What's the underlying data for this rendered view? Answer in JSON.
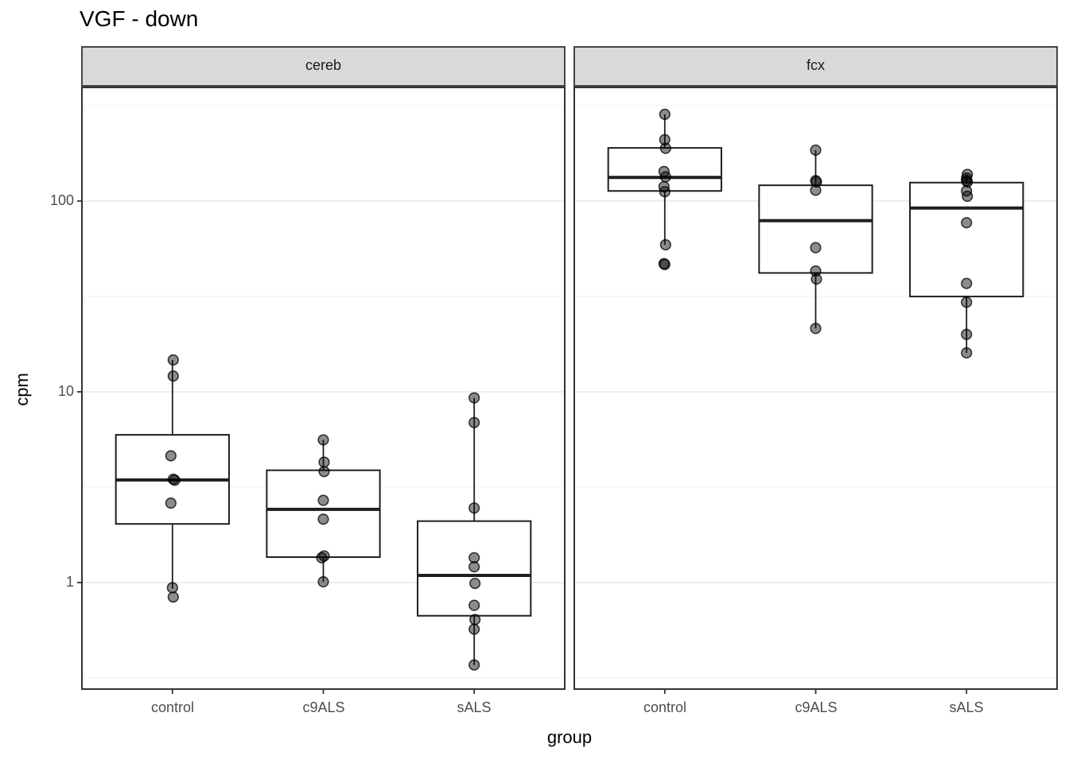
{
  "title": "VGF - down",
  "axes": {
    "y_label": "cpm",
    "x_label": "group",
    "y_ticks": [
      "100",
      "10",
      "1"
    ],
    "x_categories": [
      "control",
      "c9ALS",
      "sALS"
    ]
  },
  "colors": {
    "strip_bg": "#d9d9d9",
    "strip_border": "#333333",
    "panel_bg": "#ffffff",
    "panel_border": "#333333",
    "grid_major": "#e7e7e7",
    "grid_minor": "#f1f1f1",
    "box_stroke": "#1f1f1f",
    "point_fill": "#000000",
    "tick_mark": "#333333",
    "axis_text": "#4d4d4d"
  },
  "chart_data": {
    "type": "boxplot",
    "subtype": "boxplot-with-jitter-points",
    "title": "VGF - down",
    "xlabel": "group",
    "ylabel": "cpm",
    "y_scale": "log10",
    "y_domain": [
      0.277,
      394
    ],
    "y_major_gridlines": [
      1,
      10,
      100
    ],
    "y_minor_gridlines": [
      0.3162,
      3.162,
      31.62,
      316.2
    ],
    "categories": [
      "control",
      "c9ALS",
      "sALS"
    ],
    "facets": [
      {
        "label": "cereb",
        "groups": [
          {
            "name": "control",
            "box": {
              "q1": 2.03,
              "median": 3.45,
              "q3": 5.95,
              "whisker_lo": 0.93,
              "whisker_hi": 14.7
            },
            "points": [
              [
                14.7,
                1
              ],
              [
                12.1,
                1
              ],
              [
                4.62,
                -2
              ],
              [
                3.48,
                1
              ],
              [
                3.44,
                3
              ],
              [
                2.61,
                -2
              ],
              [
                0.94,
                0
              ],
              [
                0.84,
                1
              ]
            ]
          },
          {
            "name": "c9ALS",
            "box": {
              "q1": 1.36,
              "median": 2.42,
              "q3": 3.88,
              "whisker_lo": 1.01,
              "whisker_hi": 5.6
            },
            "points": [
              [
                5.6,
                0
              ],
              [
                4.28,
                1
              ],
              [
                3.82,
                1
              ],
              [
                2.7,
                0
              ],
              [
                2.15,
                0
              ],
              [
                1.38,
                1
              ],
              [
                1.35,
                -2
              ],
              [
                1.01,
                0
              ]
            ]
          },
          {
            "name": "sALS",
            "box": {
              "q1": 0.67,
              "median": 1.09,
              "q3": 2.1,
              "whisker_lo": 0.37,
              "whisker_hi": 9.3
            },
            "points": [
              [
                9.3,
                0
              ],
              [
                6.9,
                0
              ],
              [
                2.46,
                0
              ],
              [
                1.35,
                0
              ],
              [
                1.21,
                0
              ],
              [
                0.99,
                1
              ],
              [
                0.76,
                0
              ],
              [
                0.64,
                1
              ],
              [
                0.57,
                0
              ],
              [
                0.37,
                0
              ]
            ]
          }
        ]
      },
      {
        "label": "fcx",
        "groups": [
          {
            "name": "control",
            "box": {
              "q1": 113,
              "median": 133,
              "q3": 190,
              "whisker_lo": 59,
              "whisker_hi": 285
            },
            "points": [
              [
                285,
                0
              ],
              [
                210,
                0
              ],
              [
                189,
                1
              ],
              [
                143,
                -1
              ],
              [
                134,
                1
              ],
              [
                119,
                -1
              ],
              [
                112,
                0
              ],
              [
                59,
                1
              ],
              [
                47,
                -1
              ],
              [
                46.5,
                0
              ]
            ]
          },
          {
            "name": "c9ALS",
            "box": {
              "q1": 42,
              "median": 79,
              "q3": 121,
              "whisker_lo": 21.5,
              "whisker_hi": 185
            },
            "points": [
              [
                185,
                0
              ],
              [
                128,
                0
              ],
              [
                126,
                1
              ],
              [
                114,
                0
              ],
              [
                57,
                0
              ],
              [
                43,
                0
              ],
              [
                39,
                1
              ],
              [
                21.5,
                0
              ]
            ]
          },
          {
            "name": "sALS",
            "box": {
              "q1": 31.6,
              "median": 92,
              "q3": 125,
              "whisker_lo": 16,
              "whisker_hi": 138
            },
            "points": [
              [
                138,
                1
              ],
              [
                132,
                0
              ],
              [
                128,
                0
              ],
              [
                126,
                1
              ],
              [
                113,
                0
              ],
              [
                106,
                1
              ],
              [
                77,
                0
              ],
              [
                37,
                0
              ],
              [
                29.5,
                0
              ],
              [
                20,
                0
              ],
              [
                16,
                0
              ]
            ]
          }
        ]
      }
    ],
    "legend": "none",
    "grid": "on"
  }
}
